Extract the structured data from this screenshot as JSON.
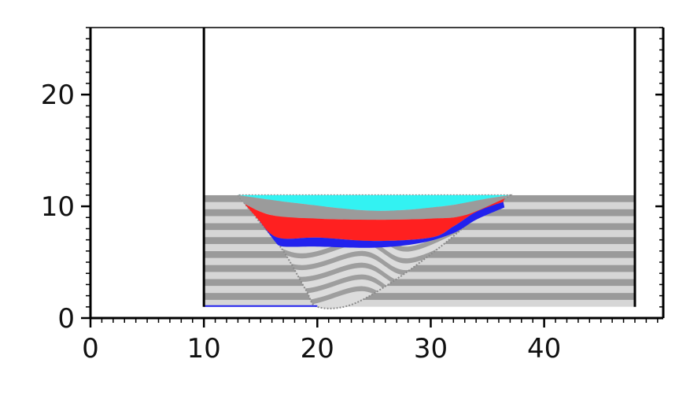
{
  "chart_data": {
    "type": "area",
    "title": "",
    "xlabel": "",
    "ylabel": "",
    "xlim": [
      0,
      50.5
    ],
    "ylim": [
      0,
      26
    ],
    "x_ticks": [
      0,
      10,
      20,
      30,
      40
    ],
    "y_ticks": [
      0,
      10,
      20
    ],
    "x_tick_labels": [
      "0",
      "10",
      "20",
      "30",
      "40"
    ],
    "y_tick_labels": [
      "0",
      "10",
      "20"
    ],
    "x_minor_step": 1,
    "y_minor_step": 1,
    "grid": false,
    "container": {
      "x_left": 10,
      "x_right": 48,
      "y_bottom": 1,
      "y_top": 26
    },
    "bed": {
      "x_range": [
        10,
        48
      ],
      "y_range": [
        1,
        11
      ],
      "stripe_count": 8,
      "colors": [
        "#d6d6d6",
        "#9a9a9a"
      ]
    },
    "crater_boundary": [
      [
        13,
        11
      ],
      [
        15,
        8.5
      ],
      [
        17,
        6
      ],
      [
        19,
        2.5
      ],
      [
        20,
        1
      ],
      [
        23,
        1.2
      ],
      [
        27,
        3.5
      ],
      [
        31,
        6.5
      ],
      [
        34,
        9
      ],
      [
        37,
        11
      ]
    ],
    "fill_layers": [
      {
        "color": "#33f2f2",
        "top": [
          [
            13,
            11
          ],
          [
            37,
            11
          ]
        ],
        "bottom": [
          [
            13,
            11
          ],
          [
            18,
            10.3
          ],
          [
            25,
            9.6
          ],
          [
            31,
            10.0
          ],
          [
            35,
            10.7
          ],
          [
            37,
            11
          ]
        ]
      },
      {
        "color": "#9b9b9b",
        "top": [
          [
            13,
            11
          ],
          [
            18,
            10.3
          ],
          [
            25,
            9.6
          ],
          [
            31,
            10.0
          ],
          [
            35,
            10.7
          ],
          [
            37,
            11
          ]
        ],
        "bottom": [
          [
            13.6,
            10.2
          ],
          [
            16,
            9.2
          ],
          [
            20,
            8.9
          ],
          [
            25,
            8.8
          ],
          [
            30,
            8.9
          ],
          [
            33,
            9.2
          ],
          [
            36.5,
            10.7
          ]
        ]
      },
      {
        "color": "#ff2020",
        "top": [
          [
            13.6,
            10.2
          ],
          [
            16,
            9.2
          ],
          [
            20,
            8.9
          ],
          [
            25,
            8.8
          ],
          [
            30,
            8.9
          ],
          [
            33,
            9.2
          ],
          [
            36.5,
            10.7
          ]
        ],
        "bottom": [
          [
            14.8,
            8.8
          ],
          [
            16.5,
            7.2
          ],
          [
            20,
            7.2
          ],
          [
            25,
            6.9
          ],
          [
            30,
            7.2
          ],
          [
            32,
            8.2
          ],
          [
            34,
            9.5
          ],
          [
            36.4,
            10.4
          ]
        ]
      },
      {
        "color": "#2222ee",
        "top": [
          [
            14.8,
            8.8
          ],
          [
            16.5,
            7.2
          ],
          [
            20,
            7.2
          ],
          [
            25,
            6.9
          ],
          [
            30,
            7.2
          ],
          [
            32,
            8.2
          ],
          [
            34,
            9.5
          ],
          [
            36.4,
            10.4
          ]
        ],
        "bottom": [
          [
            16.3,
            6.8
          ],
          [
            17,
            6.4
          ],
          [
            20,
            6.4
          ],
          [
            25,
            6.3
          ],
          [
            29,
            6.7
          ],
          [
            32,
            7.6
          ],
          [
            34,
            8.8
          ],
          [
            36.5,
            9.9
          ]
        ]
      }
    ],
    "base_line": {
      "color": "#2222ee",
      "x_range": [
        10,
        20
      ],
      "y": 1
    }
  }
}
